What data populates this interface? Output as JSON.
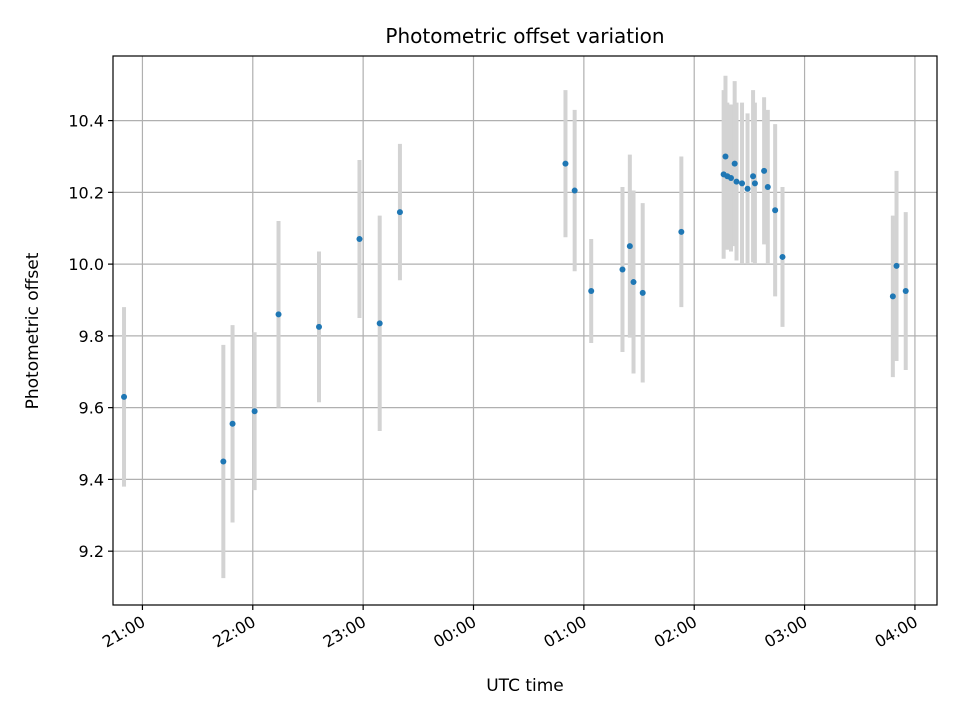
{
  "chart_data": {
    "type": "scatter",
    "title": "Photometric offset variation",
    "xlabel": "UTC time",
    "ylabel": "Photometric offset",
    "x_axis_kind": "time",
    "xlim": [
      "20:44",
      "04:12"
    ],
    "ylim": [
      9.05,
      10.58
    ],
    "xticks": [
      {
        "time": "21:00",
        "label": "21:00"
      },
      {
        "time": "22:00",
        "label": "22:00"
      },
      {
        "time": "23:00",
        "label": "23:00"
      },
      {
        "time": "00:00",
        "label": "00:00"
      },
      {
        "time": "01:00",
        "label": "01:00"
      },
      {
        "time": "02:00",
        "label": "02:00"
      },
      {
        "time": "03:00",
        "label": "03:00"
      },
      {
        "time": "04:00",
        "label": "04:00"
      }
    ],
    "yticks": [
      {
        "value": 9.2,
        "label": "9.2"
      },
      {
        "value": 9.4,
        "label": "9.4"
      },
      {
        "value": 9.6,
        "label": "9.6"
      },
      {
        "value": 9.8,
        "label": "9.8"
      },
      {
        "value": 10.0,
        "label": "10.0"
      },
      {
        "value": 10.2,
        "label": "10.2"
      },
      {
        "value": 10.4,
        "label": "10.4"
      }
    ],
    "grid": true,
    "point_color": "#1f77b4",
    "errorbar_color": "#d3d3d3",
    "points": [
      {
        "x": "20:50",
        "y": 9.63,
        "err": 0.25
      },
      {
        "x": "21:44",
        "y": 9.45,
        "err": 0.325
      },
      {
        "x": "21:49",
        "y": 9.555,
        "err": 0.275
      },
      {
        "x": "22:01",
        "y": 9.59,
        "err": 0.22
      },
      {
        "x": "22:14",
        "y": 9.86,
        "err": 0.26
      },
      {
        "x": "22:36",
        "y": 9.825,
        "err": 0.21
      },
      {
        "x": "22:58",
        "y": 10.07,
        "err": 0.22
      },
      {
        "x": "23:09",
        "y": 9.835,
        "err": 0.3
      },
      {
        "x": "23:20",
        "y": 10.145,
        "err": 0.19
      },
      {
        "x": "00:50",
        "y": 10.28,
        "err": 0.205
      },
      {
        "x": "00:55",
        "y": 10.205,
        "err": 0.225
      },
      {
        "x": "01:04",
        "y": 9.925,
        "err": 0.145
      },
      {
        "x": "01:21",
        "y": 9.985,
        "err": 0.23
      },
      {
        "x": "01:25",
        "y": 10.05,
        "err": 0.255
      },
      {
        "x": "01:27",
        "y": 9.95,
        "err": 0.255
      },
      {
        "x": "01:32",
        "y": 9.92,
        "err": 0.25
      },
      {
        "x": "01:53",
        "y": 10.09,
        "err": 0.21
      },
      {
        "x": "02:16",
        "y": 10.25,
        "err": 0.235
      },
      {
        "x": "02:17",
        "y": 10.3,
        "err": 0.225
      },
      {
        "x": "02:18",
        "y": 10.245,
        "err": 0.205
      },
      {
        "x": "02:20",
        "y": 10.24,
        "err": 0.205
      },
      {
        "x": "02:22",
        "y": 10.28,
        "err": 0.23
      },
      {
        "x": "02:23",
        "y": 10.23,
        "err": 0.22
      },
      {
        "x": "02:26",
        "y": 10.225,
        "err": 0.225
      },
      {
        "x": "02:29",
        "y": 10.21,
        "err": 0.21
      },
      {
        "x": "02:32",
        "y": 10.245,
        "err": 0.24
      },
      {
        "x": "02:33",
        "y": 10.225,
        "err": 0.225
      },
      {
        "x": "02:38",
        "y": 10.26,
        "err": 0.205
      },
      {
        "x": "02:40",
        "y": 10.215,
        "err": 0.215
      },
      {
        "x": "02:44",
        "y": 10.15,
        "err": 0.24
      },
      {
        "x": "02:48",
        "y": 10.02,
        "err": 0.195
      },
      {
        "x": "03:48",
        "y": 9.91,
        "err": 0.225
      },
      {
        "x": "03:50",
        "y": 9.995,
        "err": 0.265
      },
      {
        "x": "03:55",
        "y": 9.925,
        "err": 0.22
      }
    ]
  }
}
